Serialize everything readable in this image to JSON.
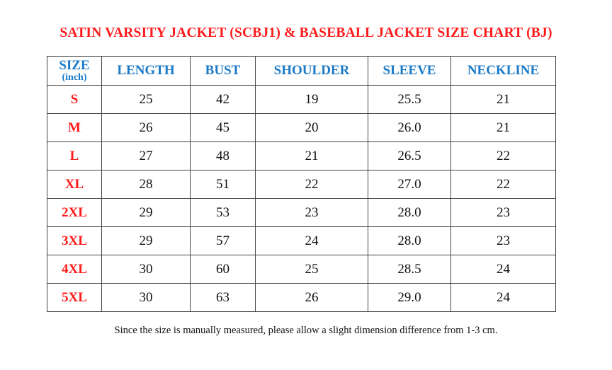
{
  "title": "SATIN VARSITY JACKET (SCBJ1) & BASEBALL JACKET SIZE CHART (BJ)",
  "table": {
    "headers": [
      {
        "label": "SIZE",
        "sub": "(inch)"
      },
      {
        "label": "LENGTH"
      },
      {
        "label": "BUST"
      },
      {
        "label": "SHOULDER"
      },
      {
        "label": "SLEEVE"
      },
      {
        "label": "NECKLINE"
      }
    ],
    "rows": [
      [
        "S",
        "25",
        "42",
        "19",
        "25.5",
        "21"
      ],
      [
        "M",
        "26",
        "45",
        "20",
        "26.0",
        "21"
      ],
      [
        "L",
        "27",
        "48",
        "21",
        "26.5",
        "22"
      ],
      [
        "XL",
        "28",
        "51",
        "22",
        "27.0",
        "22"
      ],
      [
        "2XL",
        "29",
        "53",
        "23",
        "28.0",
        "23"
      ],
      [
        "3XL",
        "29",
        "57",
        "24",
        "28.0",
        "23"
      ],
      [
        "4XL",
        "30",
        "60",
        "25",
        "28.5",
        "24"
      ],
      [
        "5XL",
        "30",
        "63",
        "26",
        "29.0",
        "24"
      ]
    ]
  },
  "note": "Since the size is manually measured, please allow a slight dimension difference from 1-3 cm.",
  "colors": {
    "title": "#ff1a1a",
    "header": "#1a7ac8",
    "size_label": "#ff1a1a"
  }
}
